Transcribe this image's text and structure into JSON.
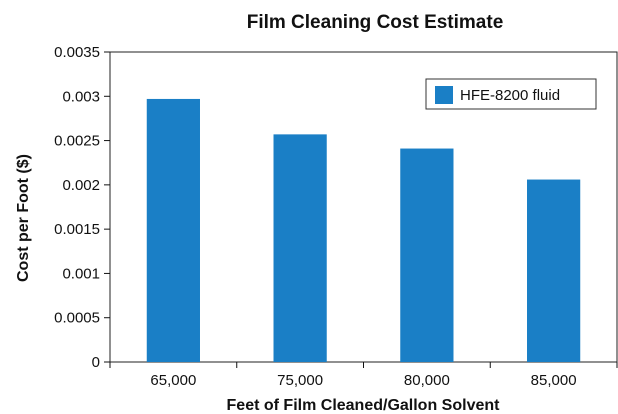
{
  "chart_data": {
    "type": "bar",
    "title": "Film Cleaning Cost Estimate",
    "xlabel": "Feet of Film Cleaned/Gallon Solvent",
    "ylabel": "Cost per Foot ($)",
    "categories": [
      "65,000",
      "75,000",
      "80,000",
      "85,000"
    ],
    "series": [
      {
        "name": "HFE-8200 fluid",
        "values": [
          0.00297,
          0.00257,
          0.00241,
          0.00206
        ]
      }
    ],
    "ylim": [
      0,
      0.0035
    ],
    "yticks": [
      "0",
      "0.0005",
      "0.001",
      "0.0015",
      "0.002",
      "0.0025",
      "0.003",
      "0.0035"
    ],
    "grid": false,
    "legend_position": "top-right",
    "colors": {
      "bar": "#1a7fc6",
      "axis": "#111111"
    }
  }
}
